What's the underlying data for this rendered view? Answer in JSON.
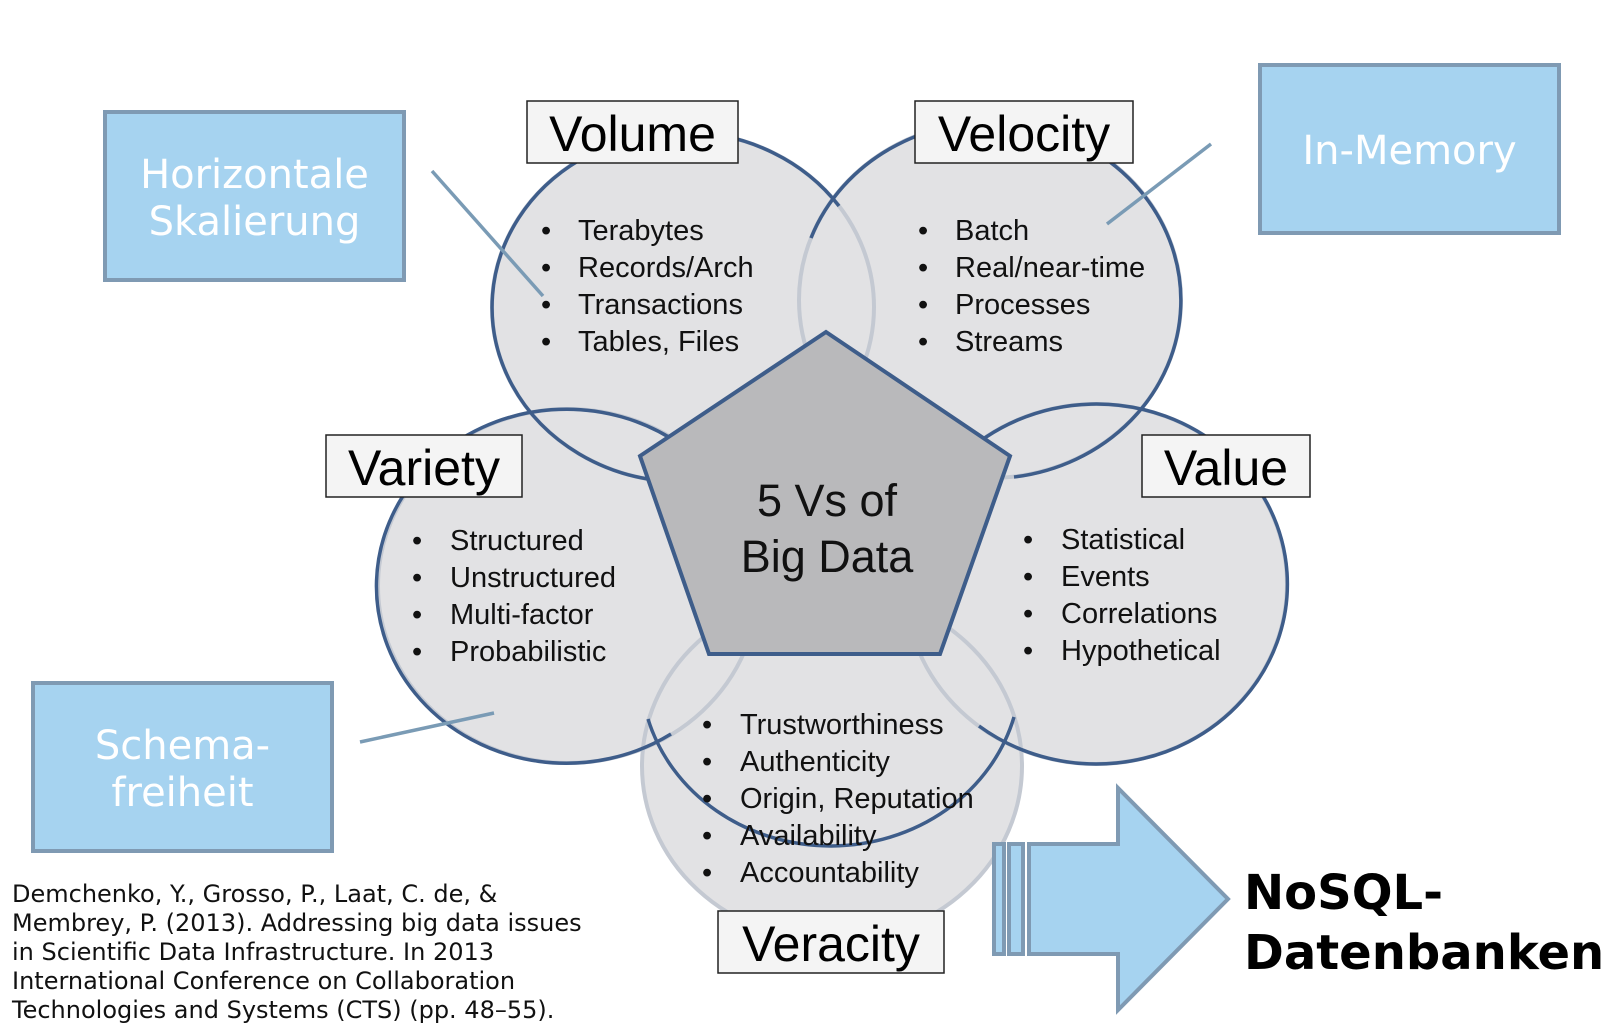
{
  "center": {
    "line1": "5 Vs of",
    "line2": "Big Data"
  },
  "volume": {
    "title": "Volume",
    "items": [
      "Terabytes",
      "Records/Arch",
      "Transactions",
      "Tables, Files"
    ]
  },
  "velocity": {
    "title": "Velocity",
    "items": [
      "Batch",
      "Real/near-time",
      "Processes",
      "Streams"
    ]
  },
  "variety": {
    "title": "Variety",
    "items": [
      "Structured",
      "Unstructured",
      "Multi-factor",
      "Probabilistic"
    ]
  },
  "value": {
    "title": "Value",
    "items": [
      "Statistical",
      "Events",
      "Correlations",
      "Hypothetical"
    ]
  },
  "veracity": {
    "title": "Veracity",
    "items": [
      "Trustworthiness",
      "Authenticity",
      "Origin, Reputation",
      "Availability",
      "Accountability"
    ]
  },
  "callouts": {
    "horizontal": {
      "line1": "Horizontale",
      "line2": "Skalierung"
    },
    "inmemory": {
      "line1": "In-Memory"
    },
    "schema": {
      "line1": "Schema-",
      "line2": "freiheit"
    }
  },
  "result": {
    "line1": "NoSQL-",
    "line2": "Datenbanken"
  },
  "citation": {
    "lines": [
      "Demchenko, Y., Grosso, P., Laat, C. de, &",
      "Membrey, P. (2013). Addressing big data issues",
      "in Scientific Data Infrastructure. In 2013",
      "International Conference on Collaboration",
      "Technologies and Systems (CTS) (pp. 48–55)."
    ]
  },
  "colors": {
    "circle_fill": "#e2e2e4",
    "circle_stroke": "#3e5d8a",
    "pentagon_fill": "#b9b9bb",
    "callout_fill": "#a6d3f0",
    "callout_stroke": "#7f9ab3",
    "connector": "#7a9bb5"
  }
}
